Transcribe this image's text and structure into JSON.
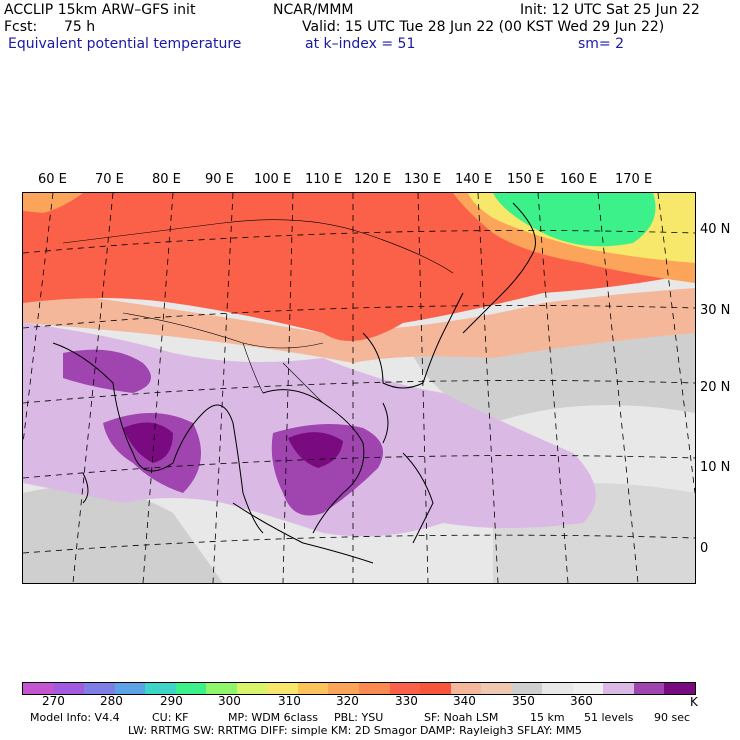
{
  "header": {
    "model": "ACCLIP 15km ARW–GFS init",
    "org": "NCAR/MMM",
    "init": "Init: 12 UTC Sat 25 Jun 22",
    "fcst_label": "Fcst:",
    "fcst_value": "75 h",
    "valid": "Valid: 15 UTC Tue 28 Jun 22 (00 KST Wed 29 Jun 22)",
    "field": "Equivalent potential temperature",
    "level": "at k–index = 51",
    "smooth": "sm= 2"
  },
  "map": {
    "lon_labels": [
      "60 E",
      "70 E",
      "80 E",
      "90 E",
      "100 E",
      "110 E",
      "120 E",
      "130 E",
      "140 E",
      "150 E",
      "160 E",
      "170 E"
    ],
    "lat_labels": [
      "40 N",
      "30 N",
      "20 N",
      "10 N",
      "0"
    ],
    "colors": {
      "ocean_gray": "#e8e8e8",
      "light_gray": "#cfcfcf",
      "salmon": "#f5b79a",
      "red": "#fb6048",
      "red_orange": "#f8553d",
      "orange": "#fba45a",
      "yellow": "#f7e76a",
      "green": "#3cf08a",
      "light_purple": "#dab9e4",
      "purple": "#a045b0",
      "dark_purple": "#7a0a80"
    }
  },
  "colorbar": {
    "colors": [
      "#c455d2",
      "#a15ae0",
      "#7d7fe6",
      "#5ba3e6",
      "#3cd5c8",
      "#3cf08a",
      "#8ff56a",
      "#d8f56a",
      "#f7e76a",
      "#fbc35a",
      "#fba45a",
      "#fb8a50",
      "#fb6048",
      "#f8553d",
      "#f5b79a",
      "#f0c8b0",
      "#cfcfcf",
      "#e8e8e8",
      "#f0f0f0",
      "#dab9e4",
      "#a045b0",
      "#7a0a80"
    ],
    "labels": [
      "270",
      "280",
      "290",
      "300",
      "310",
      "320",
      "330",
      "340",
      "350",
      "360"
    ],
    "unit": "K"
  },
  "footer": {
    "line1": [
      "Model Info: V4.4",
      "CU: KF",
      "MP: WDM 6class",
      "PBL: YSU",
      "SF: Noah LSM",
      "15 km",
      "51 levels",
      "90 sec"
    ],
    "line2": "LW: RRTMG    SW: RRTMG    DIFF: simple KM: 2D Smagor DAMP: Rayleigh3  SFLAY: MM5"
  }
}
